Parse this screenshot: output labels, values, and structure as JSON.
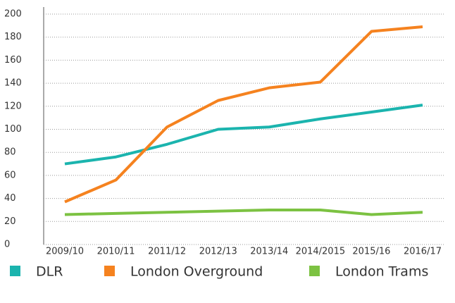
{
  "chart_data": {
    "type": "line",
    "categories": [
      "2009/10",
      "2010/11",
      "2011/12",
      "2012/13",
      "2013/14",
      "2014/2015",
      "2015/16",
      "2016/17"
    ],
    "series": [
      {
        "name": "DLR",
        "color": "#1bb4ae",
        "values": [
          70,
          76,
          87,
          100,
          102,
          109,
          115,
          121
        ]
      },
      {
        "name": "London Overground",
        "color": "#f5821f",
        "values": [
          37,
          56,
          102,
          125,
          136,
          141,
          185,
          189
        ]
      },
      {
        "name": "London Trams",
        "color": "#7cc242",
        "values": [
          26,
          27,
          28,
          29,
          30,
          30,
          26,
          28
        ]
      }
    ],
    "ylim": [
      0,
      200
    ],
    "yticks": [
      0,
      20,
      40,
      60,
      80,
      100,
      120,
      140,
      160,
      180,
      200
    ],
    "grid": true,
    "legend": "bottom"
  }
}
